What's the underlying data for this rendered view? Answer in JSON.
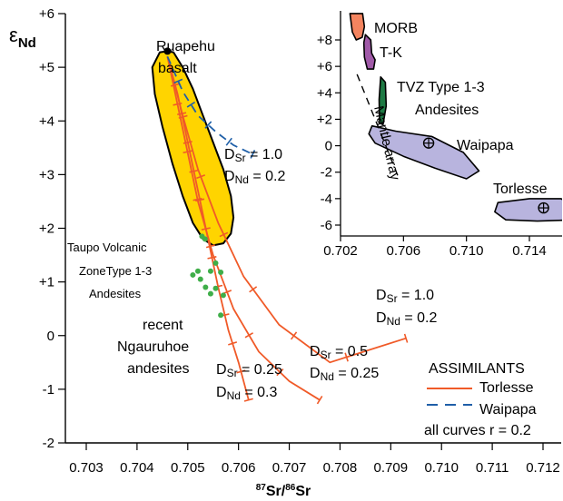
{
  "colors": {
    "curve": "#f05a28",
    "waipapa_curve": "#1f5fa8",
    "field_fill": "#ffd400",
    "sample_dots": "#3fae49",
    "morb_fill": "#f4845f",
    "tk_fill": "#a05aa8",
    "tvz_fill": "#1e7a44",
    "waipapa_fill": "#b8b4de",
    "torlesse_fill": "#b8b4de"
  },
  "chart_data": [
    {
      "type": "line",
      "xlabel_sup": "87",
      "xlabel_mid": "Sr/",
      "xlabel_sup2": "86",
      "xlabel_end": "Sr",
      "ylabel_main": "ε",
      "ylabel_sub": "Nd",
      "xlim": [
        0.7028,
        0.7122
      ],
      "ylim": [
        -2,
        6
      ],
      "x_ticks": [
        0.703,
        0.704,
        0.705,
        0.706,
        0.707,
        0.708,
        0.709,
        0.71,
        0.711,
        0.712
      ],
      "x_tick_labels": [
        "0.703",
        "0.704",
        "0.705",
        "0.706",
        "0.707",
        "0.708",
        "0.709",
        "0.710",
        "0.711",
        "0.712"
      ],
      "y_ticks": [
        6,
        5,
        4,
        3,
        2,
        1,
        0,
        -1,
        -2
      ],
      "y_tick_labels": [
        "+6",
        "+5",
        "+4",
        "+3",
        "+2",
        "+1",
        "0",
        "-1",
        "-2"
      ],
      "fields": [
        {
          "label_lines": [
            "Taupo Volcanic",
            "ZoneType 1-3",
            "Andesites"
          ],
          "outline": [
            [
              0.7046,
              5.3
            ],
            [
              0.70472,
              5.28
            ],
            [
              0.7049,
              5.0
            ],
            [
              0.7051,
              4.6
            ],
            [
              0.7053,
              4.1
            ],
            [
              0.7055,
              3.6
            ],
            [
              0.7057,
              3.1
            ],
            [
              0.70585,
              2.6
            ],
            [
              0.7059,
              2.2
            ],
            [
              0.70585,
              1.9
            ],
            [
              0.7057,
              1.72
            ],
            [
              0.7055,
              1.68
            ],
            [
              0.7053,
              1.8
            ],
            [
              0.7051,
              2.1
            ],
            [
              0.7049,
              2.6
            ],
            [
              0.7047,
              3.2
            ],
            [
              0.7045,
              3.9
            ],
            [
              0.70435,
              4.5
            ],
            [
              0.7043,
              5.0
            ],
            [
              0.70445,
              5.28
            ]
          ]
        }
      ],
      "series": [
        {
          "group": "Torlesse",
          "points": [
            [
              0.7046,
              5.2
            ],
            [
              0.7049,
              4.1
            ],
            [
              0.7052,
              3.1
            ],
            [
              0.7056,
              2.1
            ],
            [
              0.7061,
              1.1
            ],
            [
              0.7068,
              0.2
            ],
            [
              0.7078,
              -0.5
            ],
            [
              0.7093,
              -0.05
            ]
          ],
          "tick_count": 7
        },
        {
          "group": "Torlesse",
          "points": [
            [
              0.7046,
              5.2
            ],
            [
              0.7048,
              4.3
            ],
            [
              0.705,
              3.4
            ],
            [
              0.7052,
              2.5
            ],
            [
              0.7055,
              1.5
            ],
            [
              0.7059,
              0.5
            ],
            [
              0.7064,
              -0.3
            ],
            [
              0.707,
              -0.85
            ],
            [
              0.7076,
              -1.2
            ]
          ],
          "tick_count": 8
        },
        {
          "group": "Torlesse",
          "points": [
            [
              0.7046,
              5.2
            ],
            [
              0.7048,
              4.5
            ],
            [
              0.705,
              3.6
            ],
            [
              0.7052,
              2.7
            ],
            [
              0.7054,
              1.8
            ],
            [
              0.7056,
              0.9
            ],
            [
              0.7058,
              0.1
            ],
            [
              0.706,
              -0.5
            ],
            [
              0.7062,
              -1.2
            ]
          ],
          "tick_count": 12
        },
        {
          "group": "Waipapa",
          "points": [
            [
              0.7046,
              5.2
            ],
            [
              0.7049,
              4.55
            ],
            [
              0.7052,
              4.1
            ],
            [
              0.70555,
              3.8
            ],
            [
              0.7059,
              3.55
            ],
            [
              0.70628,
              3.38
            ]
          ],
          "tick_count": 5
        }
      ],
      "samples": [
        [
          0.7046,
          5.3
        ],
        [
          0.7052,
          1.2
        ],
        [
          0.7051,
          1.13
        ],
        [
          0.70525,
          1.05
        ],
        [
          0.70535,
          0.9
        ],
        [
          0.70545,
          0.78
        ],
        [
          0.70555,
          0.88
        ],
        [
          0.70545,
          1.2
        ],
        [
          0.70555,
          1.35
        ],
        [
          0.70565,
          1.18
        ],
        [
          0.7057,
          0.75
        ],
        [
          0.70565,
          0.38
        ],
        [
          0.70528,
          1.85
        ],
        [
          0.70534,
          1.8
        ]
      ],
      "annotations": {
        "ruapehu_line1": "Ruapehu",
        "ruapehu_line2": "basalt",
        "recent_line1": "recent",
        "recent_line2": "Ngauruhoe",
        "recent_line3": "andesites",
        "c1_a_pre": "D",
        "c1_a_sub": "Sr",
        "c1_a_val": " = 1.0",
        "c1_b_pre": "D",
        "c1_b_sub": "Nd",
        "c1_b_val": " = 0.2",
        "c2_a_pre": "D",
        "c2_a_sub": "Sr",
        "c2_a_val": " = 1.0",
        "c2_b_pre": "D",
        "c2_b_sub": "Nd",
        "c2_b_val": " = 0.2",
        "c3_a_pre": "D",
        "c3_a_sub": "Sr",
        "c3_a_val": " = 0.5",
        "c3_b_pre": "D",
        "c3_b_sub": "Nd",
        "c3_b_val": " = 0.25",
        "c4_a_pre": "D",
        "c4_a_sub": "Sr",
        "c4_a_val": " = 0.25",
        "c4_b_pre": "D",
        "c4_b_sub": "Nd",
        "c4_b_val": " = 0.3"
      },
      "legend": {
        "title": "ASSIMILANTS",
        "entries": [
          {
            "label": "Torlesse",
            "style": "solid"
          },
          {
            "label": "Waipapa",
            "style": "dashed"
          }
        ],
        "note": "all curves r = 0.2",
        "placement": "bottom-right"
      }
    },
    {
      "type": "scatter",
      "placement": "top-right inset",
      "xlim": [
        0.702,
        0.7165
      ],
      "ylim": [
        -6.3,
        10
      ],
      "x_ticks": [
        0.702,
        0.706,
        0.71,
        0.714
      ],
      "x_tick_labels": [
        "0.702",
        "0.706",
        "0.710",
        "0.714"
      ],
      "y_ticks": [
        8,
        6,
        4,
        2,
        0,
        -2,
        -4,
        -6
      ],
      "y_tick_labels": [
        "+8",
        "+6",
        "+4",
        "+2",
        "0",
        "-2",
        "-4",
        "-6"
      ],
      "fields": [
        {
          "name": "MORB",
          "outline": [
            [
              0.7026,
              10.0
            ],
            [
              0.7034,
              10.0
            ],
            [
              0.70352,
              9.0
            ],
            [
              0.70338,
              8.2
            ],
            [
              0.703,
              8.0
            ],
            [
              0.70275,
              8.6
            ]
          ]
        },
        {
          "name": "T-K",
          "outline": [
            [
              0.70358,
              8.4
            ],
            [
              0.70392,
              8.0
            ],
            [
              0.70398,
              7.0
            ],
            [
              0.7042,
              6.5
            ],
            [
              0.7041,
              5.8
            ],
            [
              0.7037,
              5.8
            ],
            [
              0.70352,
              6.7
            ],
            [
              0.70348,
              7.8
            ]
          ]
        },
        {
          "name": "TVZ Type 1-3 Andesites",
          "outline": [
            [
              0.70455,
              5.2
            ],
            [
              0.70485,
              4.8
            ],
            [
              0.7049,
              3.0
            ],
            [
              0.7047,
              1.6
            ],
            [
              0.70448,
              1.7
            ],
            [
              0.70445,
              3.5
            ]
          ]
        },
        {
          "name": "Waipapa",
          "center": [
            0.7076,
            0.2
          ],
          "outline": [
            [
              0.704,
              1.5
            ],
            [
              0.7055,
              1.1
            ],
            [
              0.7078,
              0.7
            ],
            [
              0.7098,
              -0.5
            ],
            [
              0.7108,
              -1.9
            ],
            [
              0.71,
              -2.5
            ],
            [
              0.708,
              -1.7
            ],
            [
              0.706,
              -0.8
            ],
            [
              0.7042,
              0.2
            ],
            [
              0.7038,
              0.9
            ]
          ]
        },
        {
          "name": "Torlesse",
          "center": [
            0.7149,
            -4.7
          ],
          "outline": [
            [
              0.712,
              -4.3
            ],
            [
              0.714,
              -4.0
            ],
            [
              0.716,
              -4.0
            ],
            [
              0.717,
              -4.6
            ],
            [
              0.717,
              -5.6
            ],
            [
              0.7145,
              -5.7
            ],
            [
              0.7125,
              -5.6
            ],
            [
              0.7118,
              -5.0
            ]
          ]
        }
      ],
      "mantle_array": {
        "label": "Mantle array",
        "points": [
          [
            0.70305,
            5.4
          ],
          [
            0.70565,
            -2.3
          ]
        ]
      },
      "tvz_line1": "TVZ Type 1-3",
      "tvz_line2": "Andesites"
    }
  ]
}
